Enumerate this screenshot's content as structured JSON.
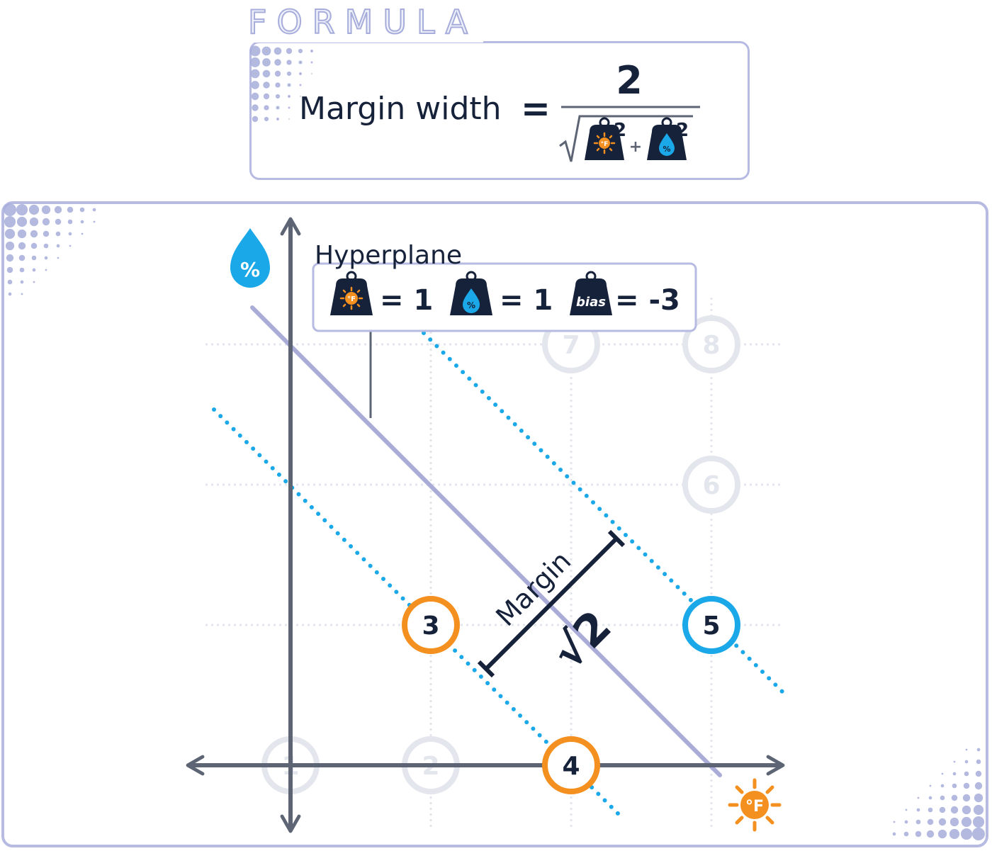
{
  "formula": {
    "tab_label": "FORMULA",
    "lhs": "Margin width",
    "equals": "=",
    "numerator": "2",
    "exponent": "2",
    "plus": "+"
  },
  "hyperplane": {
    "title": "Hyperplane",
    "temp_weight": "= 1",
    "humidity_weight": "= 1",
    "bias_label": "bias",
    "bias_value": "= -3"
  },
  "icons": {
    "temperature_symbol": "°F",
    "humidity_symbol": "%"
  },
  "margin": {
    "label": "Margin",
    "value": "√2"
  },
  "points": [
    {
      "id": "1",
      "x": 0,
      "y": 0,
      "style": "faded"
    },
    {
      "id": "2",
      "x": 1,
      "y": 0,
      "style": "faded"
    },
    {
      "id": "3",
      "x": 1,
      "y": 1,
      "style": "orange"
    },
    {
      "id": "4",
      "x": 2,
      "y": 0,
      "style": "orange"
    },
    {
      "id": "5",
      "x": 3,
      "y": 1,
      "style": "blue"
    },
    {
      "id": "6",
      "x": 3,
      "y": 2,
      "style": "faded"
    },
    {
      "id": "7",
      "x": 2,
      "y": 3,
      "style": "faded"
    },
    {
      "id": "8",
      "x": 3,
      "y": 3,
      "style": "faded"
    }
  ],
  "colors": {
    "orange": "#f4901f",
    "blue": "#1aa8e8",
    "navy": "#16213a",
    "lavender": "#a7addb",
    "axis": "#5d6474",
    "hyperplane_line": "#a9acd6",
    "faded": "#e3e6ec"
  }
}
